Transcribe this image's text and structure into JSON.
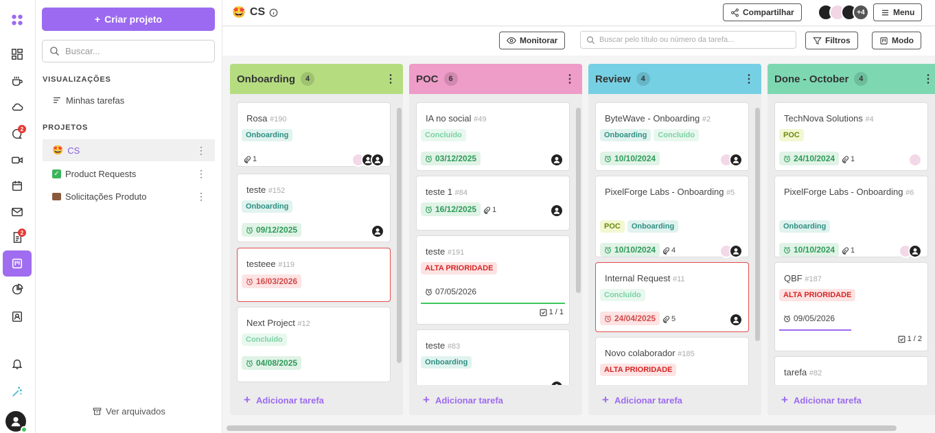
{
  "sidebar": {
    "create_label": "Criar projeto",
    "search_placeholder": "Buscar...",
    "views_title": "VISUALIZAÇÕES",
    "my_tasks": "Minhas tarefas",
    "projects_title": "PROJETOS",
    "projects": [
      {
        "label": "CS"
      },
      {
        "label": "Product Requests"
      },
      {
        "label": "Solicitações Produto"
      }
    ],
    "archived": "Ver arquivados"
  },
  "rail": {
    "chat_badge": "2",
    "docs_badge": "2"
  },
  "header": {
    "title": "CS",
    "share": "Compartilhar",
    "more_avatars": "+4",
    "menu": "Menu"
  },
  "toolbar": {
    "monitor": "Monitorar",
    "search_placeholder": "Buscar pelo título ou número da tarefa...",
    "filters": "Filtros",
    "mode": "Modo"
  },
  "add_task": "Adicionar tarefa",
  "columns": [
    {
      "title": "Onboarding",
      "count": "4",
      "color": "#b5dd80",
      "cards": [
        {
          "title": "Rosa",
          "num": "#190",
          "tags": [
            "Onboarding"
          ],
          "clips": "1"
        },
        {
          "title": "teste",
          "num": "#152",
          "tags": [
            "Onboarding"
          ],
          "date": "09/12/2025"
        },
        {
          "title": "testeee",
          "num": "#119",
          "date": "16/03/2026"
        },
        {
          "title": "Next Project",
          "num": "#12",
          "tags": [
            "Concluído"
          ],
          "date": "04/08/2025"
        }
      ]
    },
    {
      "title": "POC",
      "count": "6",
      "color": "#ee9cc8",
      "cards": [
        {
          "title": "IA no social",
          "num": "#49",
          "tags": [
            "Concluído"
          ],
          "date": "03/12/2025"
        },
        {
          "title": "teste 1",
          "num": "#84",
          "date": "16/12/2025",
          "clips": "1"
        },
        {
          "title": "teste",
          "num": "#191",
          "tags": [
            "ALTA PRIORIDADE"
          ],
          "date": "07/05/2026",
          "check": "1 / 1"
        },
        {
          "title": "teste",
          "num": "#83",
          "tags": [
            "Onboarding"
          ]
        }
      ]
    },
    {
      "title": "Review",
      "count": "4",
      "color": "#76d0e3",
      "cards": [
        {
          "title": "ByteWave - Onboarding",
          "num": "#2",
          "tags": [
            "Onboarding",
            "Concluído"
          ],
          "date": "10/10/2024"
        },
        {
          "title": "PixelForge Labs - Onboarding",
          "num": "#5",
          "tags": [
            "POC",
            "Onboarding"
          ],
          "date": "10/10/2024",
          "clips": "4"
        },
        {
          "title": "Internal Request",
          "num": "#11",
          "tags": [
            "Concluído"
          ],
          "date": "24/04/2025",
          "clips": "5"
        },
        {
          "title": "Novo colaborador",
          "num": "#185",
          "tags": [
            "ALTA PRIORIDADE"
          ]
        }
      ]
    },
    {
      "title": "Done - October",
      "count": "4",
      "color": "#7dd8b2",
      "cards": [
        {
          "title": "TechNova Solutions",
          "num": "#4",
          "tags": [
            "POC"
          ],
          "date": "24/10/2024",
          "clips": "1"
        },
        {
          "title": "PixelForge Labs - Onboarding",
          "num": "#6",
          "tags": [
            "Onboarding"
          ],
          "date": "10/10/2024",
          "clips": "1"
        },
        {
          "title": "QBF",
          "num": "#187",
          "tags": [
            "ALTA PRIORIDADE"
          ],
          "date": "09/05/2026",
          "check": "1 / 2"
        },
        {
          "title": "tarefa",
          "num": "#82"
        }
      ]
    }
  ]
}
